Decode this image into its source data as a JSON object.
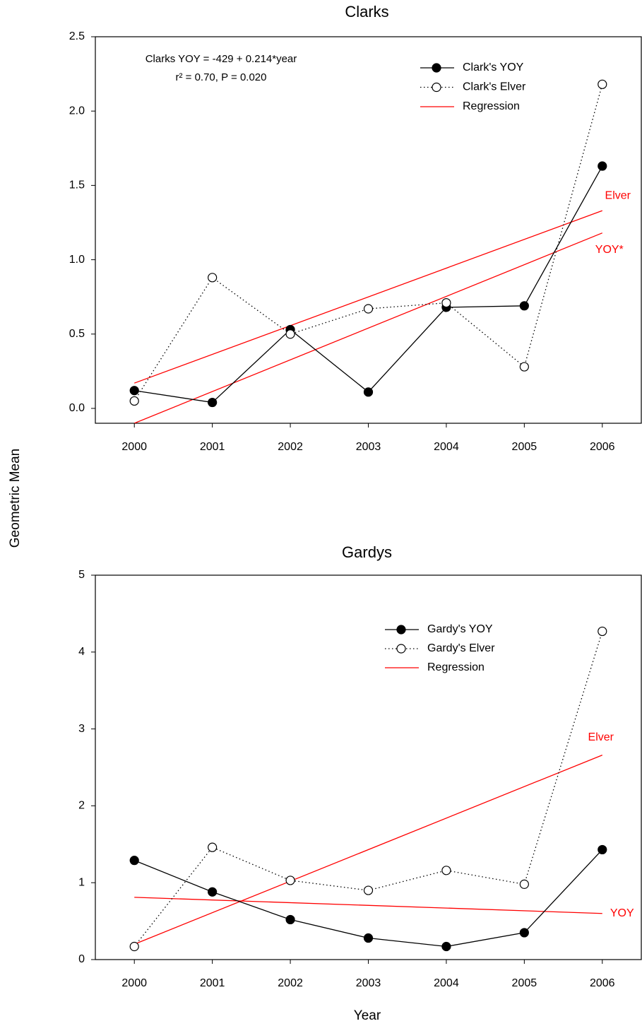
{
  "y_label": "Geometric Mean",
  "x_label": "Year",
  "chart_data": [
    {
      "type": "line",
      "title": "Clarks",
      "annotations": [
        "Clarks YOY = -429 + 0.214*year",
        "r² = 0.70, P = 0.020"
      ],
      "x": [
        2000,
        2001,
        2002,
        2003,
        2004,
        2005,
        2006
      ],
      "xlim": [
        1999.5,
        2006.5
      ],
      "xticks": [
        2000,
        2001,
        2002,
        2003,
        2004,
        2005,
        2006
      ],
      "ylim": [
        -0.1,
        2.5
      ],
      "yticks": [
        {
          "value": 0,
          "label": "0.0"
        },
        0.5,
        {
          "value": 1,
          "label": "1.0"
        },
        1.5,
        {
          "value": 2,
          "label": "2.0"
        },
        2.5
      ],
      "legend": "upper right",
      "series": [
        {
          "name": "Clark's YOY",
          "color": "#000000",
          "marker": "filled",
          "linestyle": "solid",
          "values": [
            0.12,
            0.04,
            0.53,
            0.11,
            0.68,
            0.69,
            1.63
          ]
        },
        {
          "name": "Clark's Elver",
          "color": "#000000",
          "marker": "open",
          "linestyle": "dotted",
          "values": [
            0.05,
            0.88,
            0.5,
            0.67,
            0.71,
            0.28,
            2.18
          ]
        }
      ],
      "regression": {
        "name": "Regression",
        "color": "#ff0000",
        "lines": [
          {
            "label": "Elver",
            "x": [
              2000,
              2006
            ],
            "values": [
              0.17,
              1.33
            ]
          },
          {
            "label": "YOY*",
            "x": [
              2000,
              2006
            ],
            "values": [
              -0.1,
              1.18
            ]
          }
        ]
      }
    },
    {
      "type": "line",
      "title": "Gardys",
      "x": [
        2000,
        2001,
        2002,
        2003,
        2004,
        2005,
        2006
      ],
      "xlim": [
        1999.5,
        2006.5
      ],
      "xticks": [
        2000,
        2001,
        2002,
        2003,
        2004,
        2005,
        2006
      ],
      "ylim": [
        0,
        5
      ],
      "yticks": [
        0,
        1,
        2,
        3,
        4,
        5
      ],
      "legend": "upper right",
      "series": [
        {
          "name": "Gardy's YOY",
          "color": "#000000",
          "marker": "filled",
          "linestyle": "solid",
          "values": [
            1.29,
            0.88,
            0.52,
            0.28,
            0.17,
            0.35,
            1.43
          ]
        },
        {
          "name": "Gardy's Elver",
          "color": "#000000",
          "marker": "open",
          "linestyle": "dotted",
          "values": [
            0.17,
            1.46,
            1.03,
            0.9,
            1.16,
            0.98,
            4.27
          ]
        }
      ],
      "regression": {
        "name": "Regression",
        "color": "#ff0000",
        "lines": [
          {
            "label": "Elver",
            "x": [
              2000,
              2006
            ],
            "values": [
              0.2,
              2.66
            ]
          },
          {
            "label": "YOY",
            "x": [
              2000,
              2006
            ],
            "values": [
              0.81,
              0.6
            ]
          }
        ]
      }
    }
  ]
}
